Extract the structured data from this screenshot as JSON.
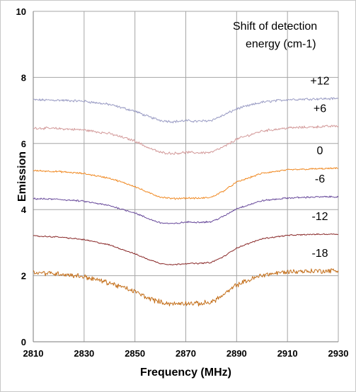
{
  "chart_data": {
    "type": "line",
    "xlabel": "Frequency (MHz)",
    "ylabel": "Emission",
    "xlim": [
      2810,
      2930
    ],
    "ylim": [
      0,
      10
    ],
    "x_ticks": [
      2810,
      2830,
      2850,
      2870,
      2890,
      2910,
      2930
    ],
    "y_ticks": [
      0,
      2,
      4,
      6,
      8,
      10
    ],
    "grid": true,
    "annotation": "Shift of detection energy (cm-1)",
    "annotation_lines": [
      "Shift of detection",
      "energy (cm-1)"
    ],
    "series": [
      {
        "name": "+12",
        "color": "#9a9cc4",
        "noise": 0.03,
        "x": [
          2810,
          2820,
          2830,
          2840,
          2850,
          2855,
          2860,
          2865,
          2870,
          2875,
          2880,
          2885,
          2890,
          2900,
          2910,
          2920,
          2930
        ],
        "values": [
          7.32,
          7.31,
          7.28,
          7.18,
          6.98,
          6.82,
          6.7,
          6.66,
          6.69,
          6.67,
          6.7,
          6.86,
          7.05,
          7.25,
          7.33,
          7.35,
          7.36
        ]
      },
      {
        "name": "+6",
        "color": "#d39a9a",
        "noise": 0.03,
        "x": [
          2810,
          2820,
          2830,
          2840,
          2850,
          2855,
          2860,
          2865,
          2870,
          2875,
          2880,
          2885,
          2890,
          2900,
          2910,
          2920,
          2930
        ],
        "values": [
          6.47,
          6.45,
          6.41,
          6.3,
          6.08,
          5.88,
          5.73,
          5.7,
          5.73,
          5.72,
          5.73,
          5.9,
          6.13,
          6.38,
          6.47,
          6.5,
          6.53
        ]
      },
      {
        "name": "0",
        "color": "#f08a24",
        "noise": 0.02,
        "x": [
          2810,
          2820,
          2830,
          2840,
          2850,
          2855,
          2860,
          2865,
          2870,
          2875,
          2880,
          2885,
          2890,
          2900,
          2910,
          2920,
          2930
        ],
        "values": [
          5.18,
          5.15,
          5.09,
          4.95,
          4.7,
          4.52,
          4.38,
          4.33,
          4.35,
          4.34,
          4.37,
          4.57,
          4.83,
          5.1,
          5.2,
          5.23,
          5.25
        ]
      },
      {
        "name": "-6",
        "color": "#6a4c9c",
        "noise": 0.02,
        "x": [
          2810,
          2820,
          2830,
          2840,
          2850,
          2855,
          2860,
          2865,
          2870,
          2875,
          2880,
          2885,
          2890,
          2900,
          2910,
          2920,
          2930
        ],
        "values": [
          4.33,
          4.31,
          4.25,
          4.12,
          3.9,
          3.73,
          3.6,
          3.57,
          3.62,
          3.62,
          3.63,
          3.8,
          4.03,
          4.27,
          4.35,
          4.38,
          4.39
        ]
      },
      {
        "name": "-12",
        "color": "#8a2a2a",
        "noise": 0.015,
        "x": [
          2810,
          2820,
          2830,
          2840,
          2850,
          2855,
          2860,
          2865,
          2870,
          2875,
          2880,
          2885,
          2890,
          2900,
          2910,
          2920,
          2930
        ],
        "values": [
          3.2,
          3.17,
          3.09,
          2.93,
          2.66,
          2.5,
          2.37,
          2.33,
          2.37,
          2.37,
          2.4,
          2.58,
          2.84,
          3.12,
          3.22,
          3.25,
          3.26
        ]
      },
      {
        "name": "-18",
        "color": "#c46f1a",
        "noise": 0.06,
        "x": [
          2810,
          2820,
          2830,
          2840,
          2850,
          2855,
          2860,
          2865,
          2870,
          2875,
          2880,
          2885,
          2890,
          2900,
          2910,
          2920,
          2930
        ],
        "values": [
          2.1,
          2.06,
          1.97,
          1.78,
          1.52,
          1.33,
          1.2,
          1.14,
          1.17,
          1.15,
          1.2,
          1.42,
          1.72,
          2.02,
          2.12,
          2.14,
          2.15
        ]
      }
    ]
  }
}
